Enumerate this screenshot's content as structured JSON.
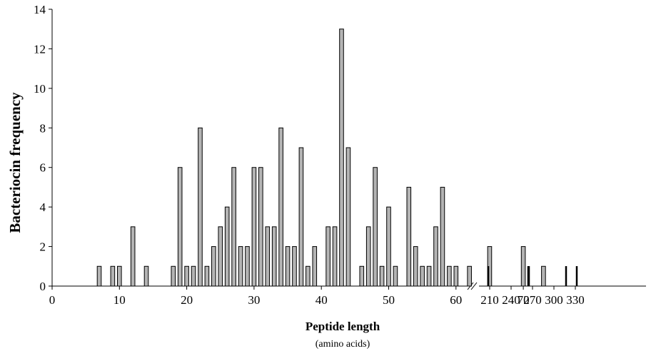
{
  "chart_data": {
    "type": "bar",
    "title": "",
    "ylabel": "Bacteriocin frequency",
    "xlabel": "Peptide length",
    "xlabel_sub": "(amino acids)",
    "ylim": [
      0,
      14
    ],
    "yticks": [
      0,
      2,
      4,
      6,
      8,
      10,
      12,
      14
    ],
    "grid": false,
    "legend": "none",
    "axis_break": "after 75",
    "xticks_left": [
      0,
      10,
      20,
      30,
      40,
      50,
      60,
      70
    ],
    "xticks_right": [
      210,
      240,
      270,
      300,
      330
    ],
    "colors": {
      "bar_fill": "#b4b4b4",
      "bar_stroke": "#000000",
      "axis": "#000000"
    },
    "bars": [
      {
        "x": 7,
        "value": 1
      },
      {
        "x": 9,
        "value": 1
      },
      {
        "x": 10,
        "value": 1
      },
      {
        "x": 12,
        "value": 3
      },
      {
        "x": 14,
        "value": 1
      },
      {
        "x": 18,
        "value": 1
      },
      {
        "x": 19,
        "value": 6
      },
      {
        "x": 20,
        "value": 1
      },
      {
        "x": 21,
        "value": 1
      },
      {
        "x": 22,
        "value": 8
      },
      {
        "x": 23,
        "value": 1
      },
      {
        "x": 24,
        "value": 2
      },
      {
        "x": 25,
        "value": 3
      },
      {
        "x": 26,
        "value": 4
      },
      {
        "x": 27,
        "value": 6
      },
      {
        "x": 28,
        "value": 2
      },
      {
        "x": 29,
        "value": 2
      },
      {
        "x": 30,
        "value": 6
      },
      {
        "x": 31,
        "value": 6
      },
      {
        "x": 32,
        "value": 3
      },
      {
        "x": 33,
        "value": 3
      },
      {
        "x": 34,
        "value": 8
      },
      {
        "x": 35,
        "value": 2
      },
      {
        "x": 36,
        "value": 2
      },
      {
        "x": 37,
        "value": 7
      },
      {
        "x": 38,
        "value": 1
      },
      {
        "x": 39,
        "value": 2
      },
      {
        "x": 41,
        "value": 3
      },
      {
        "x": 42,
        "value": 3
      },
      {
        "x": 43,
        "value": 13
      },
      {
        "x": 44,
        "value": 7
      },
      {
        "x": 46,
        "value": 1
      },
      {
        "x": 47,
        "value": 3
      },
      {
        "x": 48,
        "value": 6
      },
      {
        "x": 49,
        "value": 1
      },
      {
        "x": 50,
        "value": 4
      },
      {
        "x": 51,
        "value": 1
      },
      {
        "x": 53,
        "value": 5
      },
      {
        "x": 54,
        "value": 2
      },
      {
        "x": 55,
        "value": 1
      },
      {
        "x": 56,
        "value": 1
      },
      {
        "x": 57,
        "value": 3
      },
      {
        "x": 58,
        "value": 5
      },
      {
        "x": 59,
        "value": 1
      },
      {
        "x": 60,
        "value": 1
      },
      {
        "x": 62,
        "value": 1
      },
      {
        "x": 65,
        "value": 2
      },
      {
        "x": 70,
        "value": 2
      },
      {
        "x": 73,
        "value": 1
      },
      {
        "x": 208,
        "value": 1
      },
      {
        "x": 264,
        "value": 1
      },
      {
        "x": 265,
        "value": 1
      },
      {
        "x": 317,
        "value": 1
      },
      {
        "x": 332,
        "value": 1
      }
    ]
  }
}
